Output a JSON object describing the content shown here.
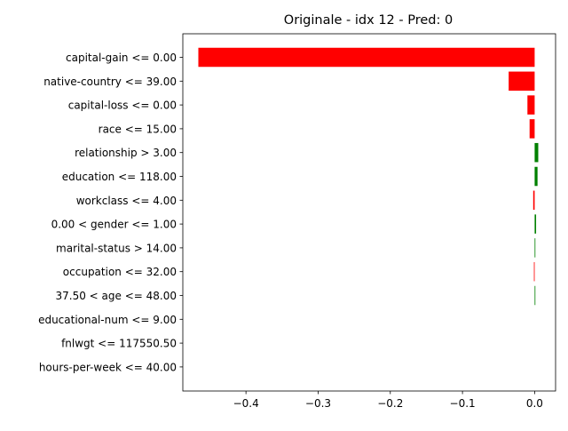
{
  "chart_data": {
    "type": "bar",
    "orientation": "horizontal",
    "title": "Originale - idx 12 - Pred: 0",
    "xlabel": "",
    "ylabel": "",
    "xlim": [
      -0.4875,
      0.029
    ],
    "xticks": [
      -0.4,
      -0.3,
      -0.2,
      -0.1,
      0.0
    ],
    "xtick_labels": [
      "−0.4",
      "−0.3",
      "−0.2",
      "−0.1",
      "0.0"
    ],
    "grid": false,
    "colors": {
      "negative": "#ff0000",
      "positive": "#008000"
    },
    "categories": [
      "capital-gain <= 0.00",
      "native-country <= 39.00",
      "capital-loss <= 0.00",
      "race <= 15.00",
      "relationship > 3.00",
      "education <= 118.00",
      "workclass <= 4.00",
      "0.00 < gender <= 1.00",
      "marital-status > 14.00",
      "occupation <= 32.00",
      "37.50 < age <= 48.00",
      "educational-num <= 9.00",
      "fnlwgt <= 117550.50",
      "hours-per-week <= 40.00"
    ],
    "values": [
      -0.466,
      -0.036,
      -0.01,
      -0.007,
      0.005,
      0.004,
      -0.002,
      0.002,
      0.001,
      -0.001,
      0.001,
      0.0,
      0.0,
      0.0
    ]
  }
}
